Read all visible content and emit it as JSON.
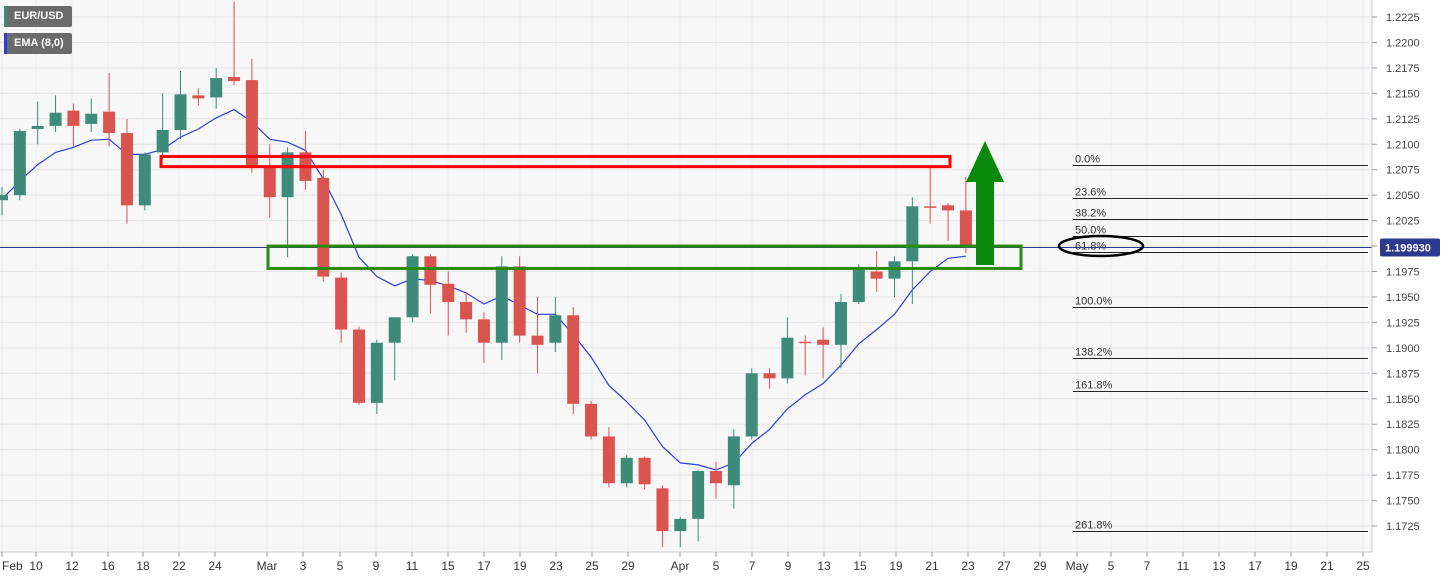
{
  "header": {
    "symbol": "EUR/USD",
    "indicator": "EMA (8,0)"
  },
  "colors": {
    "up": "#3d8b78",
    "down": "#d9534f",
    "ema": "#2e3fd6",
    "resistance_box": "#ff0000",
    "support_box": "#2a8a0a",
    "arrow": "#0a8a0a",
    "price_line": "#2b3a8c",
    "price_label_bg": "#2b3a8c"
  },
  "chart_data": {
    "type": "candlestick",
    "x_axis_labels": [
      "Feb",
      "10",
      "12",
      "16",
      "18",
      "22",
      "24",
      "Mar",
      "3",
      "5",
      "9",
      "11",
      "15",
      "17",
      "19",
      "23",
      "25",
      "29",
      "Apr",
      "5",
      "7",
      "9",
      "13",
      "15",
      "19",
      "21",
      "23",
      "27",
      "29",
      "May",
      "5",
      "7",
      "11",
      "13",
      "17",
      "19",
      "21",
      "25"
    ],
    "y_ticks": [
      "1.1725",
      "1.1750",
      "1.1775",
      "1.1800",
      "1.1825",
      "1.1850",
      "1.1875",
      "1.1900",
      "1.1925",
      "1.1950",
      "1.1975",
      "1.2000",
      "1.2025",
      "1.2050",
      "1.2075",
      "1.2100",
      "1.2125",
      "1.2150",
      "1.2175",
      "1.2200",
      "1.2225"
    ],
    "ylim": [
      1.1705,
      1.224
    ],
    "current_price": "1.199930",
    "candles": [
      {
        "o": 1.2045,
        "h": 1.2058,
        "l": 1.203,
        "c": 1.205
      },
      {
        "o": 1.205,
        "h": 1.2115,
        "l": 1.2045,
        "c": 1.2113
      },
      {
        "o": 1.2115,
        "h": 1.2142,
        "l": 1.21,
        "c": 1.2118
      },
      {
        "o": 1.2118,
        "h": 1.2148,
        "l": 1.2112,
        "c": 1.2131
      },
      {
        "o": 1.2133,
        "h": 1.214,
        "l": 1.2098,
        "c": 1.2118
      },
      {
        "o": 1.212,
        "h": 1.2145,
        "l": 1.2112,
        "c": 1.213
      },
      {
        "o": 1.2132,
        "h": 1.217,
        "l": 1.2098,
        "c": 1.2111
      },
      {
        "o": 1.2111,
        "h": 1.2125,
        "l": 1.2022,
        "c": 1.204
      },
      {
        "o": 1.204,
        "h": 1.2092,
        "l": 1.2035,
        "c": 1.209
      },
      {
        "o": 1.2092,
        "h": 1.215,
        "l": 1.2085,
        "c": 1.2114
      },
      {
        "o": 1.2114,
        "h": 1.2172,
        "l": 1.2105,
        "c": 1.2149
      },
      {
        "o": 1.2148,
        "h": 1.2155,
        "l": 1.2138,
        "c": 1.2145
      },
      {
        "o": 1.2146,
        "h": 1.2175,
        "l": 1.2135,
        "c": 1.2165
      },
      {
        "o": 1.2166,
        "h": 1.224,
        "l": 1.2158,
        "c": 1.2162
      },
      {
        "o": 1.2163,
        "h": 1.2184,
        "l": 1.2072,
        "c": 1.2079
      },
      {
        "o": 1.2077,
        "h": 1.21,
        "l": 1.2028,
        "c": 1.2048
      },
      {
        "o": 1.2048,
        "h": 1.2097,
        "l": 1.1989,
        "c": 1.2092
      },
      {
        "o": 1.2092,
        "h": 1.2113,
        "l": 1.2055,
        "c": 1.2064
      },
      {
        "o": 1.2067,
        "h": 1.2075,
        "l": 1.1965,
        "c": 1.197
      },
      {
        "o": 1.1969,
        "h": 1.1974,
        "l": 1.1905,
        "c": 1.1918
      },
      {
        "o": 1.1918,
        "h": 1.1921,
        "l": 1.1844,
        "c": 1.1846
      },
      {
        "o": 1.1846,
        "h": 1.1908,
        "l": 1.1835,
        "c": 1.1905
      },
      {
        "o": 1.1905,
        "h": 1.193,
        "l": 1.1868,
        "c": 1.193
      },
      {
        "o": 1.193,
        "h": 1.1992,
        "l": 1.1925,
        "c": 1.199
      },
      {
        "o": 1.199,
        "h": 1.1992,
        "l": 1.1934,
        "c": 1.1962
      },
      {
        "o": 1.1963,
        "h": 1.1975,
        "l": 1.1912,
        "c": 1.1945
      },
      {
        "o": 1.1945,
        "h": 1.1955,
        "l": 1.1915,
        "c": 1.1928
      },
      {
        "o": 1.1928,
        "h": 1.1935,
        "l": 1.1885,
        "c": 1.1905
      },
      {
        "o": 1.1905,
        "h": 1.199,
        "l": 1.1888,
        "c": 1.198
      },
      {
        "o": 1.198,
        "h": 1.199,
        "l": 1.1905,
        "c": 1.1912
      },
      {
        "o": 1.1912,
        "h": 1.195,
        "l": 1.1875,
        "c": 1.1903
      },
      {
        "o": 1.1905,
        "h": 1.195,
        "l": 1.1896,
        "c": 1.1932
      },
      {
        "o": 1.1932,
        "h": 1.194,
        "l": 1.1835,
        "c": 1.1845
      },
      {
        "o": 1.1845,
        "h": 1.1848,
        "l": 1.181,
        "c": 1.1813
      },
      {
        "o": 1.1813,
        "h": 1.1822,
        "l": 1.1763,
        "c": 1.1767
      },
      {
        "o": 1.1767,
        "h": 1.1795,
        "l": 1.1763,
        "c": 1.1792
      },
      {
        "o": 1.1792,
        "h": 1.1793,
        "l": 1.1761,
        "c": 1.1766
      },
      {
        "o": 1.1762,
        "h": 1.1765,
        "l": 1.1704,
        "c": 1.172
      },
      {
        "o": 1.172,
        "h": 1.1734,
        "l": 1.1704,
        "c": 1.1732
      },
      {
        "o": 1.1732,
        "h": 1.178,
        "l": 1.171,
        "c": 1.1779
      },
      {
        "o": 1.1779,
        "h": 1.1788,
        "l": 1.1752,
        "c": 1.1767
      },
      {
        "o": 1.1765,
        "h": 1.182,
        "l": 1.1742,
        "c": 1.1813
      },
      {
        "o": 1.1813,
        "h": 1.188,
        "l": 1.181,
        "c": 1.1875
      },
      {
        "o": 1.1875,
        "h": 1.188,
        "l": 1.186,
        "c": 1.187
      },
      {
        "o": 1.187,
        "h": 1.193,
        "l": 1.1865,
        "c": 1.191
      },
      {
        "o": 1.1906,
        "h": 1.1912,
        "l": 1.1873,
        "c": 1.1905
      },
      {
        "o": 1.1908,
        "h": 1.192,
        "l": 1.187,
        "c": 1.1903
      },
      {
        "o": 1.1903,
        "h": 1.1953,
        "l": 1.188,
        "c": 1.1945
      },
      {
        "o": 1.1945,
        "h": 1.1982,
        "l": 1.1943,
        "c": 1.1978
      },
      {
        "o": 1.1975,
        "h": 1.1995,
        "l": 1.1955,
        "c": 1.1968
      },
      {
        "o": 1.1968,
        "h": 1.199,
        "l": 1.195,
        "c": 1.1985
      },
      {
        "o": 1.1985,
        "h": 1.2048,
        "l": 1.1943,
        "c": 1.2039
      },
      {
        "o": 1.2039,
        "h": 1.2079,
        "l": 1.2022,
        "c": 1.2038
      },
      {
        "o": 1.204,
        "h": 1.2042,
        "l": 1.2005,
        "c": 1.2035
      },
      {
        "o": 1.2035,
        "h": 1.2068,
        "l": 1.1993,
        "c": 1.1999
      }
    ],
    "ema": [
      1.2046,
      1.2064,
      1.208,
      1.2092,
      1.2097,
      1.2104,
      1.2105,
      1.209,
      1.209,
      1.2095,
      1.2107,
      1.2115,
      1.2126,
      1.2134,
      1.2122,
      1.2105,
      1.2102,
      1.2094,
      1.2066,
      1.2031,
      1.1989,
      1.197,
      1.1961,
      1.1968,
      1.1966,
      1.1961,
      1.1954,
      1.1943,
      1.1951,
      1.1942,
      1.1933,
      1.1933,
      1.1913,
      1.1891,
      1.1863,
      1.1847,
      1.1829,
      1.1803,
      1.1787,
      1.1785,
      1.178,
      1.1787,
      1.1806,
      1.182,
      1.184,
      1.1854,
      1.1865,
      1.1883,
      1.1904,
      1.1918,
      1.1933,
      1.1957,
      1.1975,
      1.1988,
      1.199
    ],
    "fibonacci": [
      {
        "label": "0.0%",
        "value": 1.208
      },
      {
        "label": "23.6%",
        "value": 1.2047
      },
      {
        "label": "38.2%",
        "value": 1.2027
      },
      {
        "label": "50.0%",
        "value": 1.201
      },
      {
        "label": "61.8%",
        "value": 1.1994
      },
      {
        "label": "100.0%",
        "value": 1.194
      },
      {
        "label": "138.2%",
        "value": 1.189
      },
      {
        "label": "161.8%",
        "value": 1.1858
      },
      {
        "label": "261.8%",
        "value": 1.172
      }
    ],
    "annotations": {
      "resistance_zone": {
        "y_top": 1.2088,
        "y_bottom": 1.2078
      },
      "support_zone": {
        "y_top": 1.2,
        "y_bottom": 1.1978
      },
      "arrow_direction": "up"
    }
  }
}
